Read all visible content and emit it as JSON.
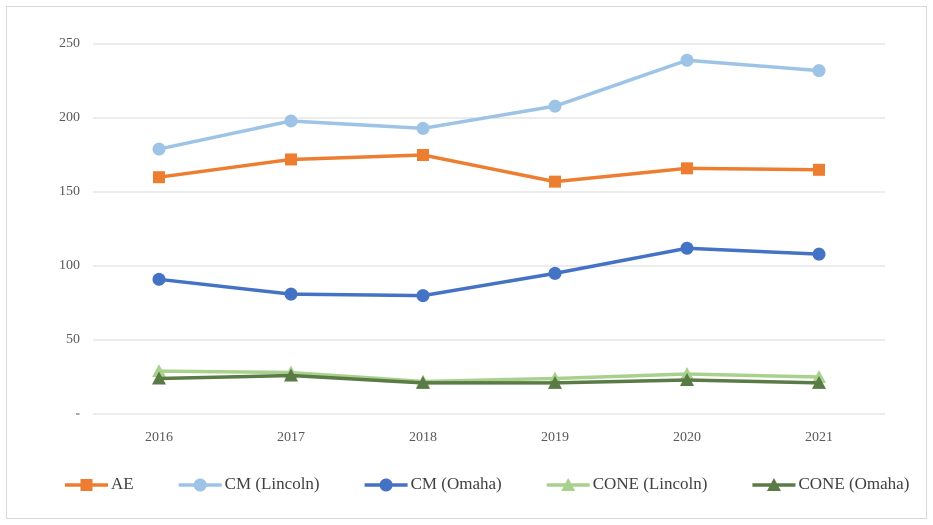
{
  "chart_data": {
    "type": "line",
    "categories": [
      "2016",
      "2017",
      "2018",
      "2019",
      "2020",
      "2021"
    ],
    "series": [
      {
        "name": "AE",
        "color": "#ed7d31",
        "marker": "square",
        "values": [
          160,
          172,
          175,
          157,
          166,
          165
        ]
      },
      {
        "name": "CM (Lincoln)",
        "color": "#9dc3e6",
        "marker": "circle",
        "values": [
          179,
          198,
          193,
          208,
          239,
          232
        ]
      },
      {
        "name": "CM (Omaha)",
        "color": "#4472c4",
        "marker": "circle",
        "values": [
          91,
          81,
          80,
          95,
          112,
          108
        ]
      },
      {
        "name": "CONE (Lincoln)",
        "color": "#a9d18e",
        "marker": "triangle",
        "values": [
          29,
          28,
          22,
          24,
          27,
          25
        ]
      },
      {
        "name": "CONE (Omaha)",
        "color": "#5a7a46",
        "marker": "triangle",
        "values": [
          24,
          26,
          21,
          21,
          23,
          21
        ]
      }
    ],
    "ylim": [
      0,
      250
    ],
    "yticks": [
      {
        "value": 0,
        "label": "-"
      },
      50,
      100,
      150,
      200,
      250
    ],
    "grid": true,
    "legend": "bottom"
  }
}
